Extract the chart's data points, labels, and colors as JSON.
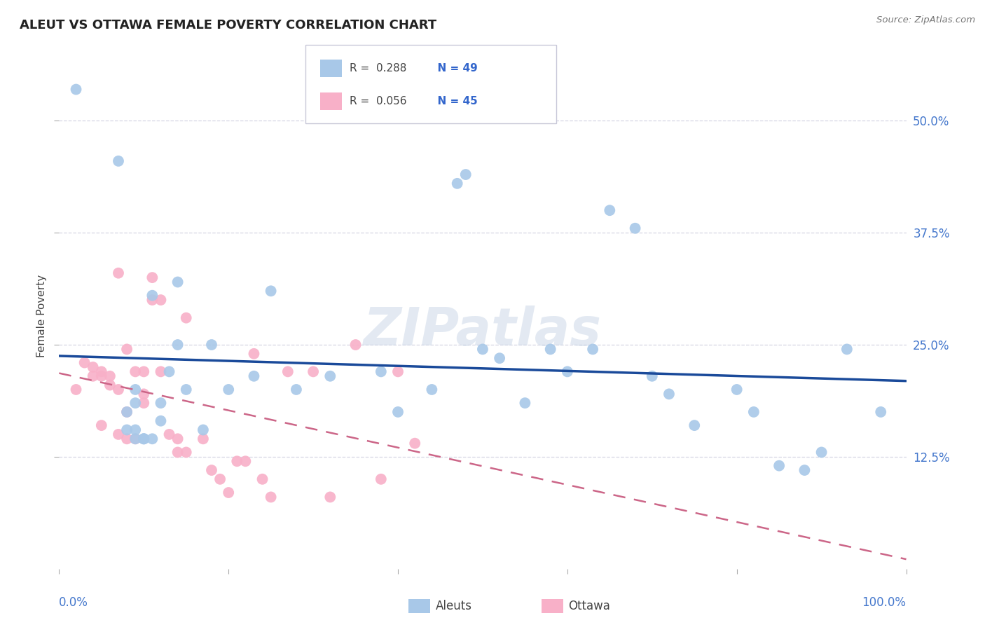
{
  "title": "ALEUT VS OTTAWA FEMALE POVERTY CORRELATION CHART",
  "source": "Source: ZipAtlas.com",
  "ylabel": "Female Poverty",
  "aleut_scatter_color": "#a8c8e8",
  "ottawa_scatter_color": "#f8b0c8",
  "aleut_line_color": "#1a4a9a",
  "ottawa_line_color": "#cc6688",
  "background_color": "#ffffff",
  "grid_color": "#ccccdd",
  "xlim": [
    0.0,
    1.0
  ],
  "ylim": [
    0.0,
    0.565
  ],
  "yticks": [
    0.125,
    0.25,
    0.375,
    0.5
  ],
  "ytick_labels": [
    "12.5%",
    "25.0%",
    "37.5%",
    "50.0%"
  ],
  "aleut_x": [
    0.02,
    0.07,
    0.08,
    0.08,
    0.09,
    0.09,
    0.09,
    0.09,
    0.1,
    0.1,
    0.1,
    0.11,
    0.11,
    0.12,
    0.12,
    0.13,
    0.14,
    0.14,
    0.15,
    0.17,
    0.18,
    0.2,
    0.23,
    0.25,
    0.28,
    0.32,
    0.38,
    0.4,
    0.44,
    0.47,
    0.48,
    0.5,
    0.52,
    0.55,
    0.58,
    0.6,
    0.63,
    0.65,
    0.68,
    0.7,
    0.72,
    0.75,
    0.8,
    0.82,
    0.85,
    0.88,
    0.9,
    0.93,
    0.97
  ],
  "aleut_y": [
    0.535,
    0.455,
    0.175,
    0.155,
    0.155,
    0.145,
    0.185,
    0.2,
    0.145,
    0.145,
    0.145,
    0.145,
    0.305,
    0.165,
    0.185,
    0.22,
    0.25,
    0.32,
    0.2,
    0.155,
    0.25,
    0.2,
    0.215,
    0.31,
    0.2,
    0.215,
    0.22,
    0.175,
    0.2,
    0.43,
    0.44,
    0.245,
    0.235,
    0.185,
    0.245,
    0.22,
    0.245,
    0.4,
    0.38,
    0.215,
    0.195,
    0.16,
    0.2,
    0.175,
    0.115,
    0.11,
    0.13,
    0.245,
    0.175
  ],
  "ottawa_x": [
    0.02,
    0.03,
    0.04,
    0.04,
    0.05,
    0.05,
    0.05,
    0.06,
    0.06,
    0.07,
    0.07,
    0.07,
    0.08,
    0.08,
    0.08,
    0.09,
    0.09,
    0.1,
    0.1,
    0.1,
    0.11,
    0.11,
    0.12,
    0.12,
    0.13,
    0.14,
    0.14,
    0.15,
    0.15,
    0.17,
    0.18,
    0.19,
    0.2,
    0.21,
    0.22,
    0.23,
    0.24,
    0.25,
    0.27,
    0.3,
    0.32,
    0.35,
    0.38,
    0.4,
    0.42
  ],
  "ottawa_y": [
    0.2,
    0.23,
    0.215,
    0.225,
    0.22,
    0.215,
    0.16,
    0.205,
    0.215,
    0.15,
    0.2,
    0.33,
    0.145,
    0.245,
    0.175,
    0.22,
    0.145,
    0.22,
    0.195,
    0.185,
    0.3,
    0.325,
    0.3,
    0.22,
    0.15,
    0.145,
    0.13,
    0.13,
    0.28,
    0.145,
    0.11,
    0.1,
    0.085,
    0.12,
    0.12,
    0.24,
    0.1,
    0.08,
    0.22,
    0.22,
    0.08,
    0.25,
    0.1,
    0.22,
    0.14
  ]
}
